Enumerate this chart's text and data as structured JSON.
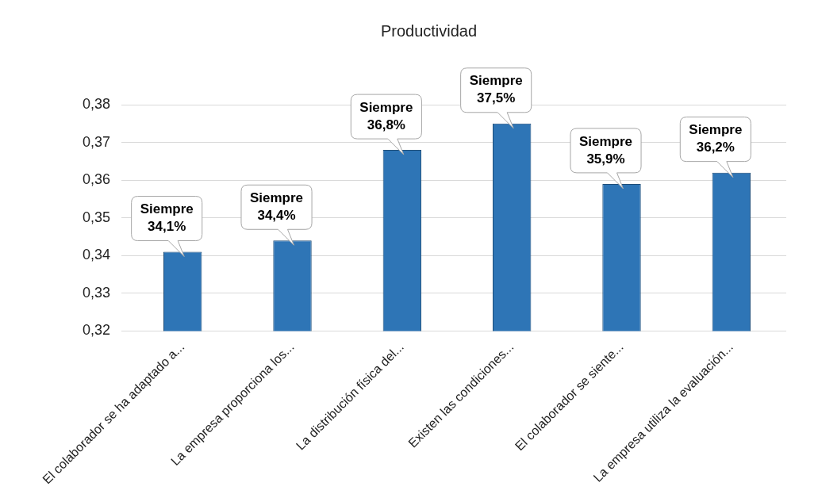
{
  "chart_data": {
    "type": "bar",
    "title": "Productividad",
    "categories": [
      "El colaborador se ha adaptado a...",
      "La empresa proporciona los...",
      "La distribución física del...",
      "Existen las condiciones...",
      "El colaborador se siente...",
      "La empresa utiliza la evaluación..."
    ],
    "values": [
      0.341,
      0.344,
      0.368,
      0.375,
      0.359,
      0.362
    ],
    "value_labels": [
      "Siempre\n34,1%",
      "Siempre\n34,4%",
      "Siempre\n36,8%",
      "Siempre\n37,5%",
      "Siempre\n35,9%",
      "Siempre\n36,2%"
    ],
    "color": "#2e75b6",
    "ylim": [
      0.32,
      0.38
    ],
    "yticks": [
      {
        "value": 0.32,
        "label": "0,32"
      },
      {
        "value": 0.33,
        "label": "0,33"
      },
      {
        "value": 0.34,
        "label": "0,34"
      },
      {
        "value": 0.35,
        "label": "0,35"
      },
      {
        "value": 0.36,
        "label": "0,36"
      },
      {
        "value": 0.37,
        "label": "0,37"
      },
      {
        "value": 0.38,
        "label": "0,38"
      }
    ],
    "grid": "y",
    "legend": false
  }
}
